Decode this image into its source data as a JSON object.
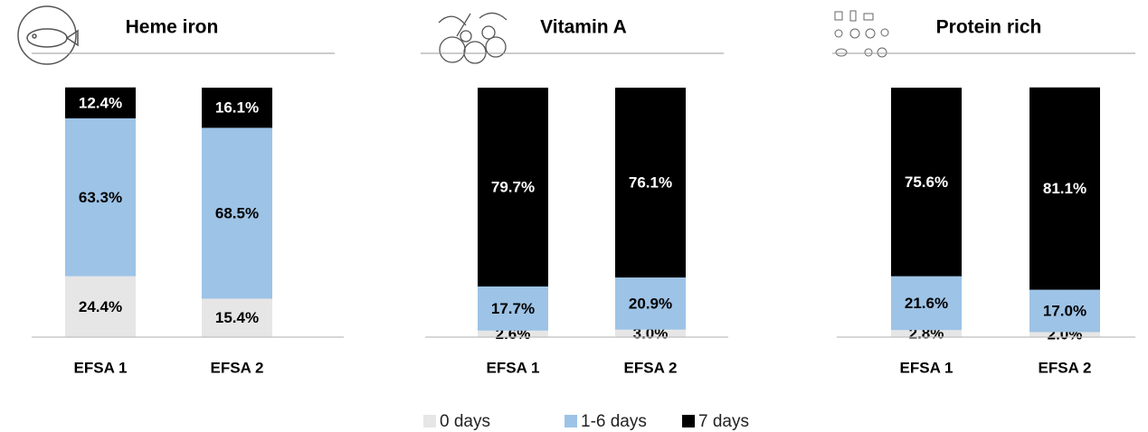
{
  "chart_data": [
    {
      "type": "bar",
      "stacked": true,
      "title": "Heme iron",
      "categories": [
        "EFSA 1",
        "EFSA 2"
      ],
      "ylim": [
        0,
        100
      ],
      "series": [
        {
          "name": "0 days",
          "color": "#e7e6e6",
          "values": [
            24.4,
            15.4
          ],
          "value_labels": [
            "24.4%",
            "15.4%"
          ]
        },
        {
          "name": "1-6 days",
          "color": "#9dc3e6",
          "values": [
            63.3,
            68.5
          ],
          "value_labels": [
            "63.3%",
            "68.5%"
          ]
        },
        {
          "name": "7 days",
          "color": "#000000",
          "values": [
            12.4,
            16.1
          ],
          "value_labels": [
            "12.4%",
            "16.1%"
          ]
        }
      ]
    },
    {
      "type": "bar",
      "stacked": true,
      "title": "Vitamin A",
      "categories": [
        "EFSA 1",
        "EFSA 2"
      ],
      "ylim": [
        0,
        100
      ],
      "series": [
        {
          "color": "#e7e6e6",
          "values": [
            2.6,
            3.0
          ],
          "value_labels": [
            "2.6%",
            "3.0%"
          ]
        },
        {
          "color": "#9dc3e6",
          "values": [
            17.7,
            20.9
          ],
          "value_labels": [
            "17.7%",
            "20.9%"
          ]
        },
        {
          "color": "#000000",
          "values": [
            79.7,
            76.1
          ],
          "value_labels": [
            "79.7%",
            "76.1%"
          ]
        }
      ]
    },
    {
      "type": "bar",
      "stacked": true,
      "title": "Protein rich",
      "categories": [
        "EFSA 1",
        "EFSA 2"
      ],
      "ylim": [
        0,
        100
      ],
      "series": [
        {
          "color": "#e7e6e6",
          "values": [
            2.8,
            2.0
          ],
          "value_labels": [
            "2.8%",
            "2.0%"
          ]
        },
        {
          "color": "#9dc3e6",
          "values": [
            21.6,
            17.0
          ],
          "value_labels": [
            "21.6%",
            "17.0%"
          ]
        },
        {
          "color": "#000000",
          "values": [
            75.6,
            81.1
          ],
          "value_labels": [
            "75.6%",
            "81.1%"
          ]
        }
      ]
    }
  ]
}
